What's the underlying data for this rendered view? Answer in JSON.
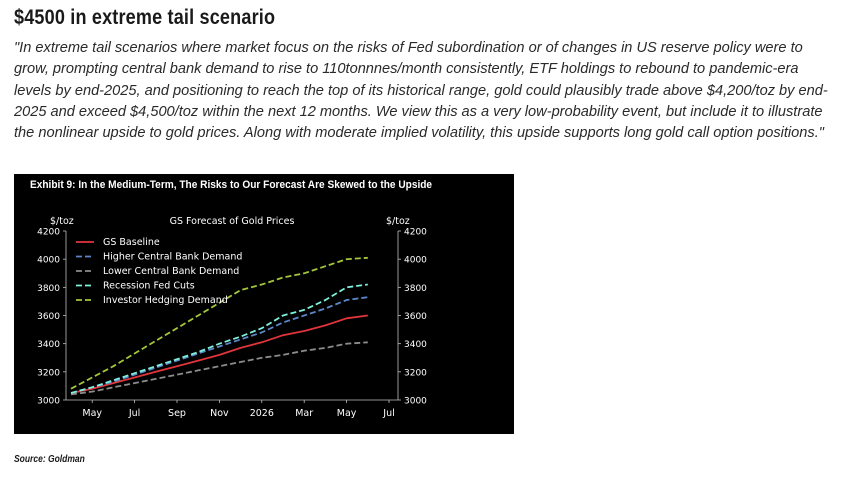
{
  "article": {
    "heading": "$4500 in extreme tail scenario",
    "quote": "\"In extreme tail scenarios where market focus on the risks of Fed subordination or of changes in US reserve policy were to grow, prompting central bank demand to rise to 110tonnnes/month consistently, ETF holdings to rebound to pandemic-era levels by end-2025, and positioning to reach the top of its historical range, gold could plausibly trade above $4,200/toz by end-2025 and exceed $4,500/toz within the next 12 months. We view this as a very low-probability event, but include it to illustrate the nonlinear upside to gold prices. Along with moderate implied volatility, this upside supports long gold call option positions.\"",
    "source": "Source: Goldman"
  },
  "colors": {
    "exhibit_background": "#000000",
    "gs_baseline": "#e0353b",
    "higher_cb": "#5b87c7",
    "lower_cb": "#8c8c8c",
    "recession_cuts": "#7ff0dc",
    "investor_hedging": "#a4c639"
  },
  "chart_data": {
    "type": "line",
    "exhibit_title": "Exhibit 9: In the Medium-Term, The Risks to Our Forecast Are Skewed to the Upside",
    "title": "GS Forecast of Gold Prices",
    "left_unit": "$/toz",
    "right_unit": "$/toz",
    "ylim": [
      3000,
      4200
    ],
    "y_ticks": [
      "3000",
      "3200",
      "3400",
      "3600",
      "3800",
      "4000",
      "4200"
    ],
    "x_tick_labels": [
      "May",
      "Jul",
      "Sep",
      "Nov",
      "2026",
      "Mar",
      "May",
      "Jul"
    ],
    "x_months": [
      "Apr 2025",
      "May 2025",
      "Jun 2025",
      "Jul 2025",
      "Aug 2025",
      "Sep 2025",
      "Oct 2025",
      "Nov 2025",
      "Dec 2025",
      "Jan 2026",
      "Feb 2026",
      "Mar 2026",
      "Apr 2026",
      "May 2026",
      "Jun 2026"
    ],
    "legend_position": "top-left",
    "grid": false,
    "series": [
      {
        "name": "GS Baseline",
        "color": "#e0353b",
        "dash": "solid",
        "values": [
          3050,
          3080,
          3120,
          3160,
          3200,
          3240,
          3280,
          3320,
          3370,
          3410,
          3460,
          3490,
          3530,
          3580,
          3600
        ]
      },
      {
        "name": "Higher Central Bank Demand",
        "color": "#5b87c7",
        "dash": "dashed",
        "values": [
          3050,
          3090,
          3130,
          3180,
          3230,
          3280,
          3330,
          3380,
          3430,
          3480,
          3550,
          3600,
          3650,
          3710,
          3730
        ]
      },
      {
        "name": "Lower Central Bank Demand",
        "color": "#8c8c8c",
        "dash": "dashed",
        "values": [
          3040,
          3060,
          3090,
          3120,
          3150,
          3180,
          3210,
          3240,
          3270,
          3300,
          3320,
          3350,
          3370,
          3400,
          3410
        ]
      },
      {
        "name": "Recession Fed Cuts",
        "color": "#7ff0dc",
        "dash": "dashed",
        "values": [
          3050,
          3090,
          3140,
          3190,
          3240,
          3290,
          3340,
          3400,
          3450,
          3510,
          3600,
          3640,
          3710,
          3800,
          3820
        ]
      },
      {
        "name": "Investor Hedging Demand",
        "color": "#a4c639",
        "dash": "dashed",
        "values": [
          3080,
          3160,
          3240,
          3330,
          3420,
          3510,
          3600,
          3690,
          3780,
          3820,
          3870,
          3900,
          3950,
          4000,
          4010
        ]
      }
    ]
  }
}
